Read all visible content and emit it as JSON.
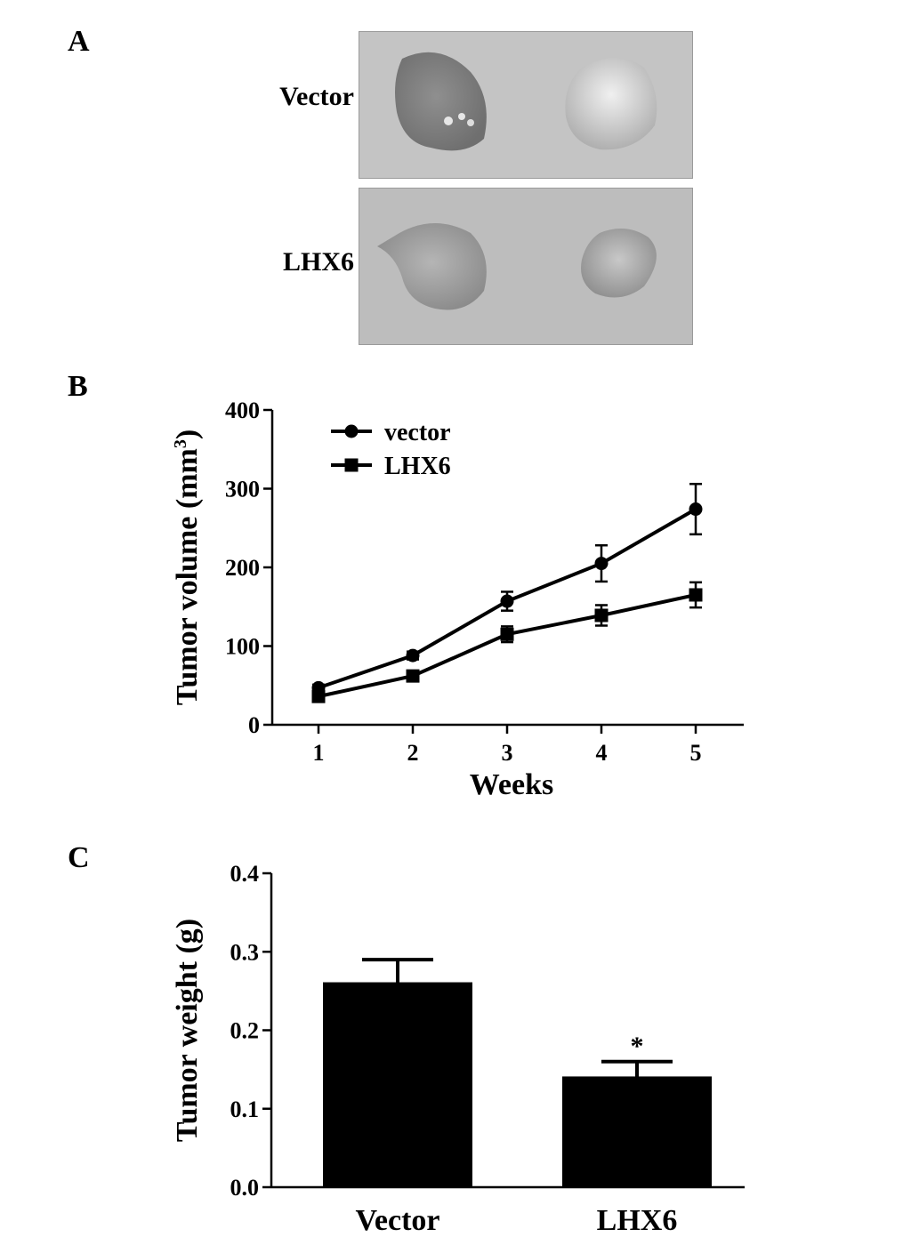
{
  "panels": {
    "a": "A",
    "b": "B",
    "c": "C"
  },
  "photo_panel": {
    "rows": [
      {
        "label": "Vector"
      },
      {
        "label": "LHX6"
      }
    ]
  },
  "chart_data": [
    {
      "type": "line",
      "x": [
        1,
        2,
        3,
        4,
        5
      ],
      "xlabel": "Weeks",
      "ylabel": "Tumor volume (mm",
      "ylabel_sup": "3",
      "ylabel_close": ")",
      "ylim": [
        0,
        400
      ],
      "yticks": [
        0,
        100,
        200,
        300,
        400
      ],
      "xticks": [
        1,
        2,
        3,
        4,
        5
      ],
      "grid": false,
      "legend_position": "top-left",
      "series": [
        {
          "name": "vector",
          "marker": "circle",
          "values": [
            47,
            88,
            157,
            205,
            274
          ],
          "errors": [
            4,
            5,
            12,
            23,
            32
          ]
        },
        {
          "name": "LHX6",
          "marker": "square",
          "values": [
            36,
            62,
            115,
            139,
            165
          ],
          "errors": [
            3,
            5,
            10,
            13,
            16
          ]
        }
      ]
    },
    {
      "type": "bar",
      "categories": [
        "Vector",
        "LHX6"
      ],
      "values": [
        0.26,
        0.14
      ],
      "errors": [
        0.03,
        0.02
      ],
      "annotations": [
        "",
        "*"
      ],
      "ylabel": "Tumor weight (g)",
      "ylim": [
        0,
        0.4
      ],
      "yticks": [
        "0.0",
        "0.1",
        "0.2",
        "0.3",
        "0.4"
      ],
      "grid": false
    }
  ]
}
